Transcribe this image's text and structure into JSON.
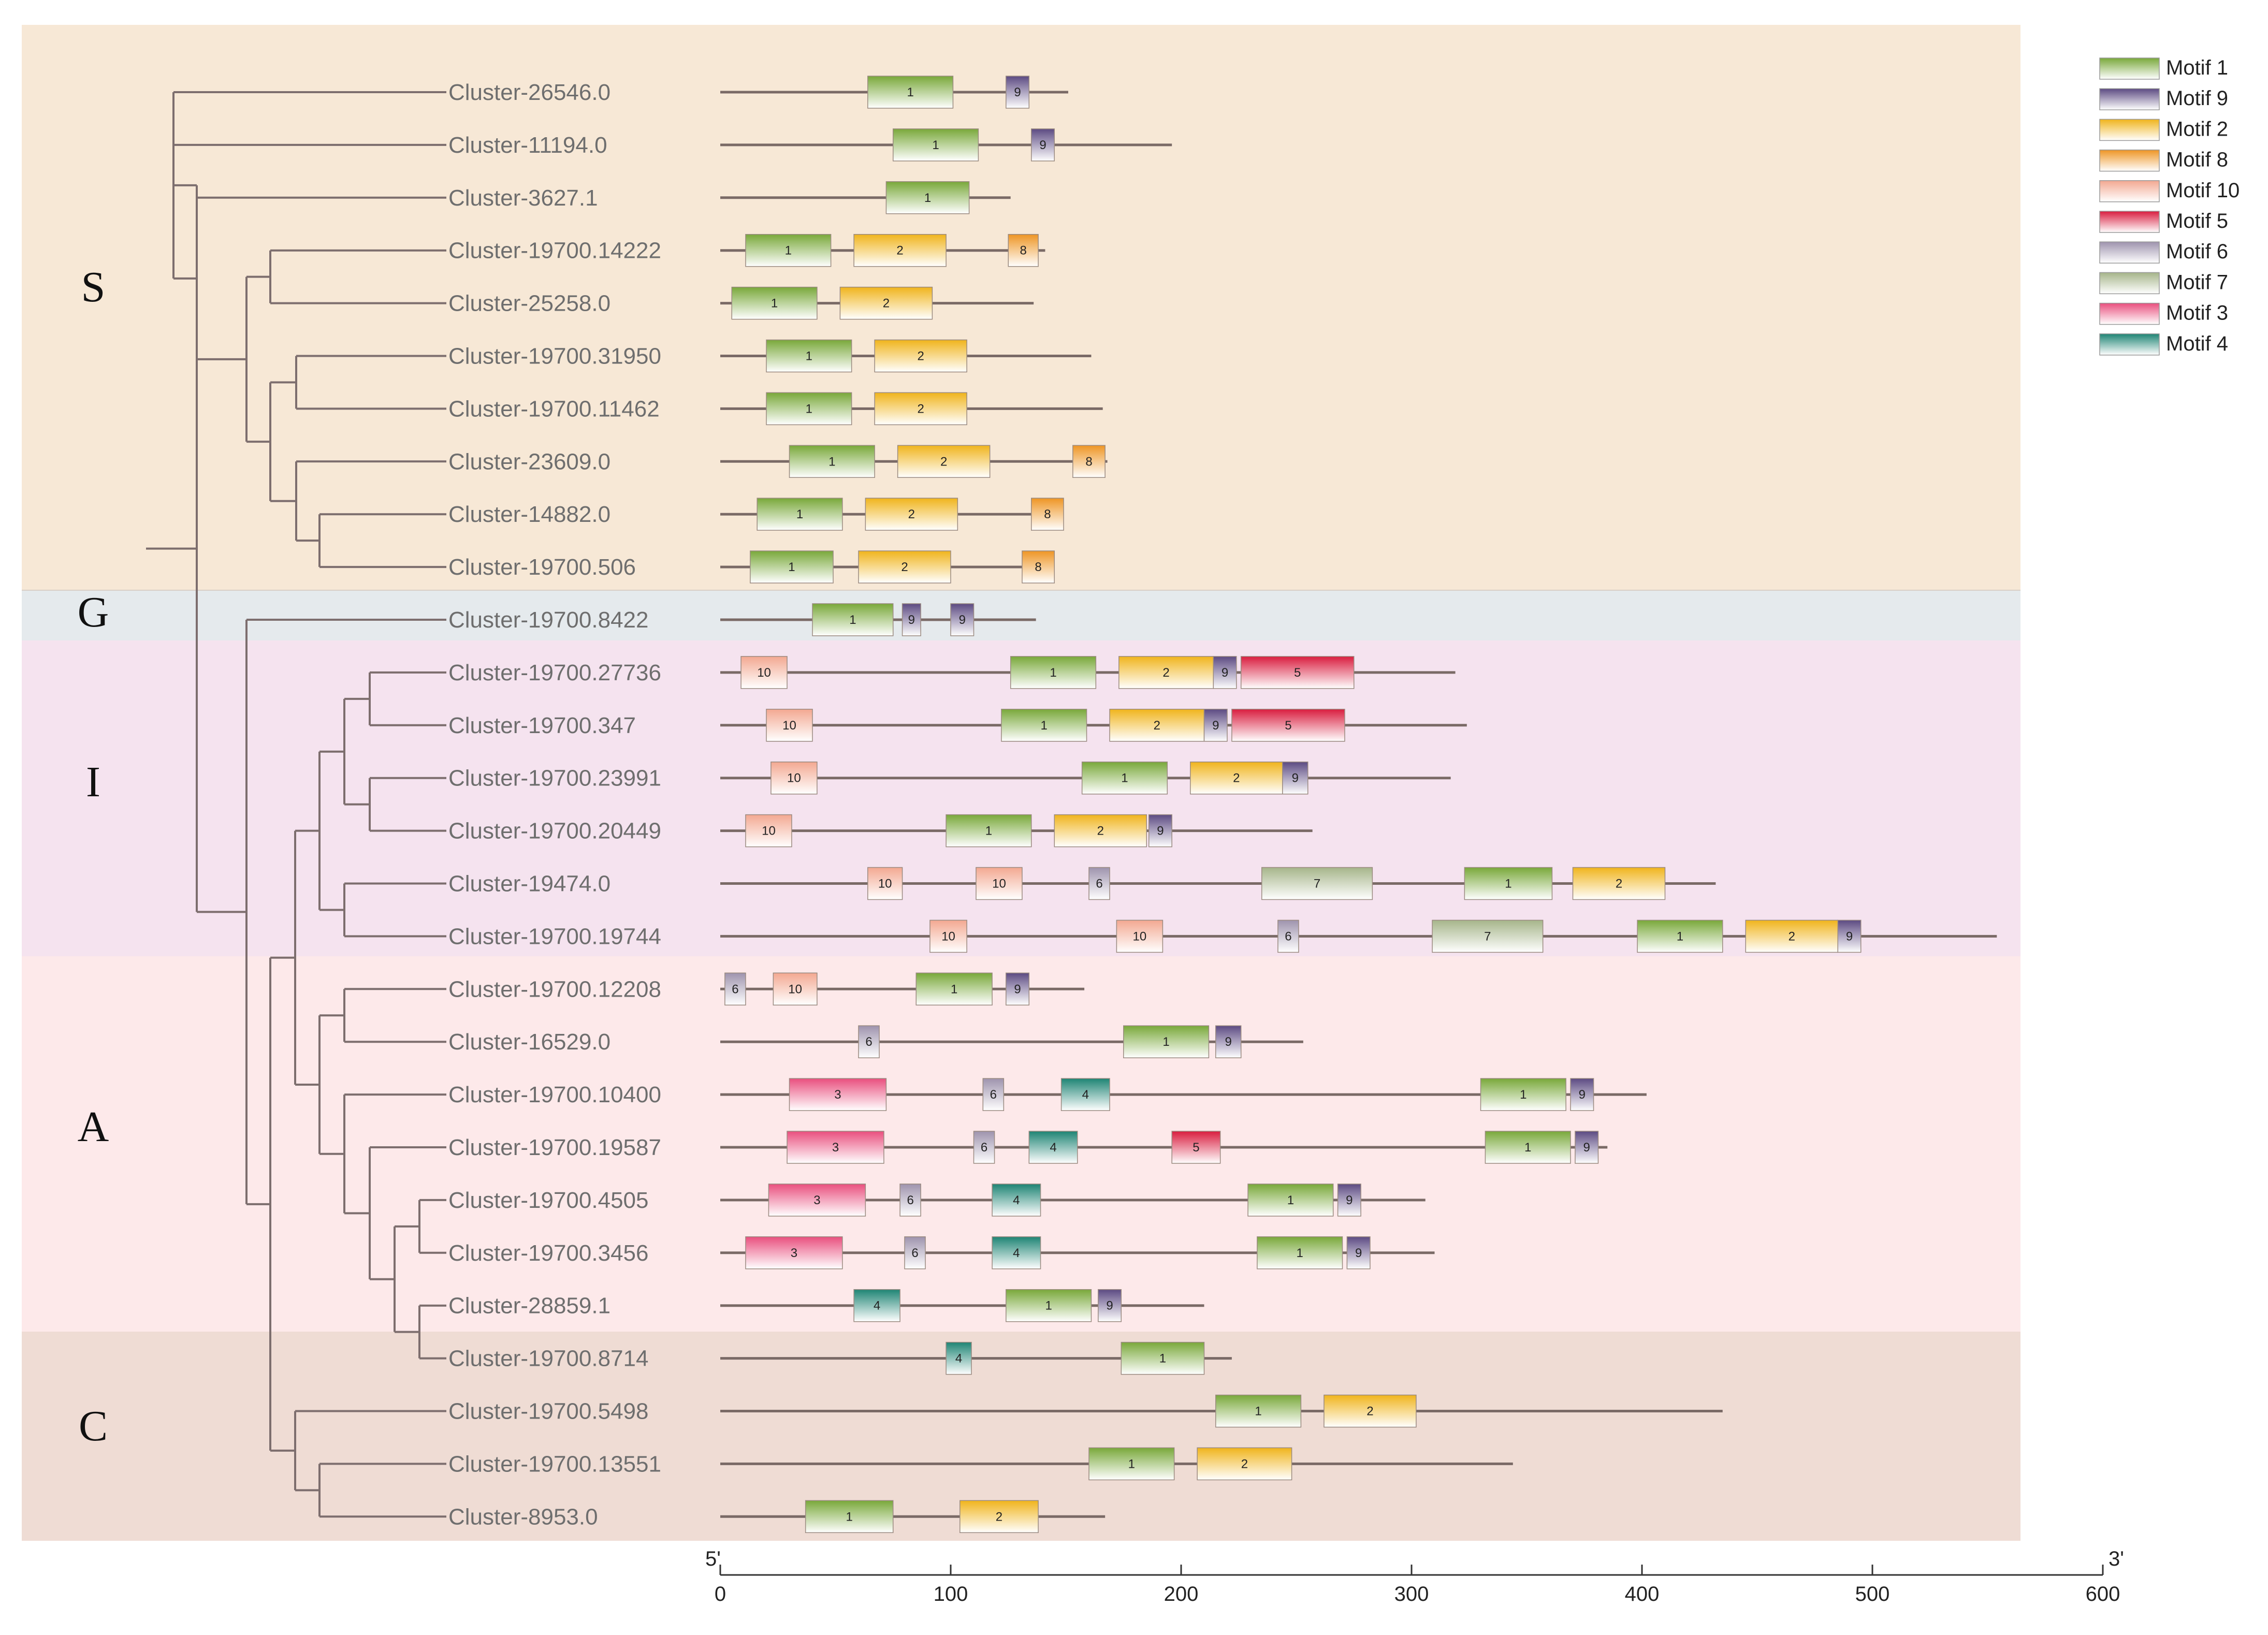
{
  "figure": {
    "x_axis": {
      "min": 0,
      "max": 600,
      "ticks": [
        "0",
        "100",
        "200",
        "300",
        "400",
        "500",
        "600"
      ],
      "tick_values": [
        0,
        100,
        200,
        300,
        400,
        500,
        600
      ],
      "start_label": "5'",
      "end_label": "3'"
    },
    "clades": [
      {
        "label": "S",
        "color": "#f7e8d6"
      },
      {
        "label": "G",
        "color": "#e5eaed"
      },
      {
        "label": "I",
        "color": "#f5e3ef"
      },
      {
        "label": "A",
        "color": "#fde9ea"
      },
      {
        "label": "C",
        "color": "#efdcd4"
      }
    ],
    "motif_legend": [
      {
        "id": "1",
        "label": "Motif 1",
        "color": "#79a83a"
      },
      {
        "id": "9",
        "label": "Motif 9",
        "color": "#5c4a82"
      },
      {
        "id": "2",
        "label": "Motif 2",
        "color": "#f0b41c"
      },
      {
        "id": "8",
        "label": "Motif 8",
        "color": "#ee9524"
      },
      {
        "id": "10",
        "label": "Motif 10",
        "color": "#f3a891"
      },
      {
        "id": "5",
        "label": "Motif 5",
        "color": "#d91d3f"
      },
      {
        "id": "6",
        "label": "Motif 6",
        "color": "#9e93ad"
      },
      {
        "id": "7",
        "label": "Motif 7",
        "color": "#a6b58a"
      },
      {
        "id": "3",
        "label": "Motif 3",
        "color": "#e94f7e"
      },
      {
        "id": "4",
        "label": "Motif 4",
        "color": "#1e8474"
      }
    ],
    "genes": [
      {
        "name": "Cluster-26546.0",
        "clade": "S",
        "length": 151,
        "motifs": [
          {
            "m": "1",
            "s": 64,
            "e": 101
          },
          {
            "m": "9",
            "s": 124,
            "e": 134
          }
        ]
      },
      {
        "name": "Cluster-11194.0",
        "clade": "S",
        "length": 196,
        "motifs": [
          {
            "m": "1",
            "s": 75,
            "e": 112
          },
          {
            "m": "9",
            "s": 135,
            "e": 145
          }
        ]
      },
      {
        "name": "Cluster-3627.1",
        "clade": "S",
        "length": 126,
        "motifs": [
          {
            "m": "1",
            "s": 72,
            "e": 108
          }
        ]
      },
      {
        "name": "Cluster-19700.14222",
        "clade": "S",
        "length": 141,
        "motifs": [
          {
            "m": "1",
            "s": 11,
            "e": 48
          },
          {
            "m": "2",
            "s": 58,
            "e": 98
          },
          {
            "m": "8",
            "s": 125,
            "e": 138
          }
        ]
      },
      {
        "name": "Cluster-25258.0",
        "clade": "S",
        "length": 136,
        "motifs": [
          {
            "m": "1",
            "s": 5,
            "e": 42
          },
          {
            "m": "2",
            "s": 52,
            "e": 92
          }
        ]
      },
      {
        "name": "Cluster-19700.31950",
        "clade": "S",
        "length": 161,
        "motifs": [
          {
            "m": "1",
            "s": 20,
            "e": 57
          },
          {
            "m": "2",
            "s": 67,
            "e": 107
          }
        ]
      },
      {
        "name": "Cluster-19700.11462",
        "clade": "S",
        "length": 166,
        "motifs": [
          {
            "m": "1",
            "s": 20,
            "e": 57
          },
          {
            "m": "2",
            "s": 67,
            "e": 107
          }
        ]
      },
      {
        "name": "Cluster-23609.0",
        "clade": "S",
        "length": 168,
        "motifs": [
          {
            "m": "1",
            "s": 30,
            "e": 67
          },
          {
            "m": "2",
            "s": 77,
            "e": 117
          },
          {
            "m": "8",
            "s": 153,
            "e": 167
          }
        ]
      },
      {
        "name": "Cluster-14882.0",
        "clade": "S",
        "length": 148,
        "motifs": [
          {
            "m": "1",
            "s": 16,
            "e": 53
          },
          {
            "m": "2",
            "s": 63,
            "e": 103
          },
          {
            "m": "8",
            "s": 135,
            "e": 149
          }
        ]
      },
      {
        "name": "Cluster-19700.506",
        "clade": "S",
        "length": 143,
        "motifs": [
          {
            "m": "1",
            "s": 13,
            "e": 49
          },
          {
            "m": "2",
            "s": 60,
            "e": 100
          },
          {
            "m": "8",
            "s": 131,
            "e": 145
          }
        ]
      },
      {
        "name": "Cluster-19700.8422",
        "clade": "G",
        "length": 137,
        "motifs": [
          {
            "m": "1",
            "s": 40,
            "e": 75
          },
          {
            "m": "9",
            "s": 79,
            "e": 87
          },
          {
            "m": "9",
            "s": 100,
            "e": 110
          }
        ]
      },
      {
        "name": "Cluster-19700.27736",
        "clade": "I",
        "length": 319,
        "motifs": [
          {
            "m": "10",
            "s": 9,
            "e": 29
          },
          {
            "m": "1",
            "s": 126,
            "e": 163
          },
          {
            "m": "2",
            "s": 173,
            "e": 214
          },
          {
            "m": "9",
            "s": 214,
            "e": 224
          },
          {
            "m": "5",
            "s": 226,
            "e": 275
          }
        ]
      },
      {
        "name": "Cluster-19700.347",
        "clade": "I",
        "length": 324,
        "motifs": [
          {
            "m": "10",
            "s": 20,
            "e": 40
          },
          {
            "m": "1",
            "s": 122,
            "e": 159
          },
          {
            "m": "2",
            "s": 169,
            "e": 210
          },
          {
            "m": "9",
            "s": 210,
            "e": 220
          },
          {
            "m": "5",
            "s": 222,
            "e": 271
          }
        ]
      },
      {
        "name": "Cluster-19700.23991",
        "clade": "I",
        "length": 317,
        "motifs": [
          {
            "m": "10",
            "s": 22,
            "e": 42
          },
          {
            "m": "1",
            "s": 157,
            "e": 194
          },
          {
            "m": "2",
            "s": 204,
            "e": 244
          },
          {
            "m": "9",
            "s": 244,
            "e": 255
          }
        ]
      },
      {
        "name": "Cluster-19700.20449",
        "clade": "I",
        "length": 257,
        "motifs": [
          {
            "m": "10",
            "s": 11,
            "e": 31
          },
          {
            "m": "1",
            "s": 98,
            "e": 135
          },
          {
            "m": "2",
            "s": 145,
            "e": 185
          },
          {
            "m": "9",
            "s": 186,
            "e": 196
          }
        ]
      },
      {
        "name": "Cluster-19474.0",
        "clade": "I",
        "length": 432,
        "motifs": [
          {
            "m": "10",
            "s": 64,
            "e": 79
          },
          {
            "m": "10",
            "s": 111,
            "e": 131
          },
          {
            "m": "6",
            "s": 160,
            "e": 169
          },
          {
            "m": "7",
            "s": 235,
            "e": 283
          },
          {
            "m": "1",
            "s": 323,
            "e": 361
          },
          {
            "m": "2",
            "s": 370,
            "e": 410
          }
        ]
      },
      {
        "name": "Cluster-19700.19744",
        "clade": "I",
        "length": 554,
        "motifs": [
          {
            "m": "10",
            "s": 91,
            "e": 107
          },
          {
            "m": "10",
            "s": 172,
            "e": 192
          },
          {
            "m": "6",
            "s": 242,
            "e": 251
          },
          {
            "m": "7",
            "s": 309,
            "e": 357
          },
          {
            "m": "1",
            "s": 398,
            "e": 435
          },
          {
            "m": "2",
            "s": 445,
            "e": 485
          },
          {
            "m": "9",
            "s": 485,
            "e": 495
          }
        ]
      },
      {
        "name": "Cluster-19700.12208",
        "clade": "A",
        "length": 158,
        "motifs": [
          {
            "m": "6",
            "s": 2,
            "e": 11
          },
          {
            "m": "10",
            "s": 23,
            "e": 42
          },
          {
            "m": "1",
            "s": 85,
            "e": 118
          },
          {
            "m": "9",
            "s": 124,
            "e": 134
          }
        ]
      },
      {
        "name": "Cluster-16529.0",
        "clade": "A",
        "length": 253,
        "motifs": [
          {
            "m": "6",
            "s": 60,
            "e": 69
          },
          {
            "m": "1",
            "s": 175,
            "e": 212
          },
          {
            "m": "9",
            "s": 215,
            "e": 226
          }
        ]
      },
      {
        "name": "Cluster-19700.10400",
        "clade": "A",
        "length": 402,
        "motifs": [
          {
            "m": "3",
            "s": 30,
            "e": 72
          },
          {
            "m": "6",
            "s": 114,
            "e": 123
          },
          {
            "m": "4",
            "s": 148,
            "e": 169
          },
          {
            "m": "1",
            "s": 330,
            "e": 367
          },
          {
            "m": "9",
            "s": 369,
            "e": 379
          }
        ]
      },
      {
        "name": "Cluster-19700.19587",
        "clade": "A",
        "length": 385,
        "motifs": [
          {
            "m": "3",
            "s": 29,
            "e": 71
          },
          {
            "m": "6",
            "s": 110,
            "e": 119
          },
          {
            "m": "4",
            "s": 134,
            "e": 155
          },
          {
            "m": "5",
            "s": 196,
            "e": 217
          },
          {
            "m": "1",
            "s": 332,
            "e": 369
          },
          {
            "m": "9",
            "s": 371,
            "e": 381
          }
        ]
      },
      {
        "name": "Cluster-19700.4505",
        "clade": "A",
        "length": 306,
        "motifs": [
          {
            "m": "3",
            "s": 21,
            "e": 63
          },
          {
            "m": "6",
            "s": 78,
            "e": 87
          },
          {
            "m": "4",
            "s": 118,
            "e": 139
          },
          {
            "m": "1",
            "s": 229,
            "e": 266
          },
          {
            "m": "9",
            "s": 268,
            "e": 278
          }
        ]
      },
      {
        "name": "Cluster-19700.3456",
        "clade": "A",
        "length": 310,
        "motifs": [
          {
            "m": "3",
            "s": 11,
            "e": 53
          },
          {
            "m": "6",
            "s": 80,
            "e": 89
          },
          {
            "m": "4",
            "s": 118,
            "e": 139
          },
          {
            "m": "1",
            "s": 233,
            "e": 270
          },
          {
            "m": "9",
            "s": 272,
            "e": 282
          }
        ]
      },
      {
        "name": "Cluster-28859.1",
        "clade": "A",
        "length": 210,
        "motifs": [
          {
            "m": "4",
            "s": 58,
            "e": 78
          },
          {
            "m": "1",
            "s": 124,
            "e": 161
          },
          {
            "m": "9",
            "s": 164,
            "e": 174
          }
        ]
      },
      {
        "name": "Cluster-19700.8714",
        "clade": "C",
        "length": 222,
        "motifs": [
          {
            "m": "4",
            "s": 98,
            "e": 109
          },
          {
            "m": "1",
            "s": 174,
            "e": 210
          }
        ]
      },
      {
        "name": "Cluster-19700.5498",
        "clade": "C",
        "length": 435,
        "motifs": [
          {
            "m": "1",
            "s": 215,
            "e": 252
          },
          {
            "m": "2",
            "s": 262,
            "e": 302
          }
        ]
      },
      {
        "name": "Cluster-19700.13551",
        "clade": "C",
        "length": 344,
        "motifs": [
          {
            "m": "1",
            "s": 160,
            "e": 197
          },
          {
            "m": "2",
            "s": 207,
            "e": 248
          }
        ]
      },
      {
        "name": "Cluster-8953.0",
        "clade": "C",
        "length": 167,
        "motifs": [
          {
            "m": "1",
            "s": 37,
            "e": 75
          },
          {
            "m": "2",
            "s": 104,
            "e": 138
          }
        ]
      }
    ]
  }
}
